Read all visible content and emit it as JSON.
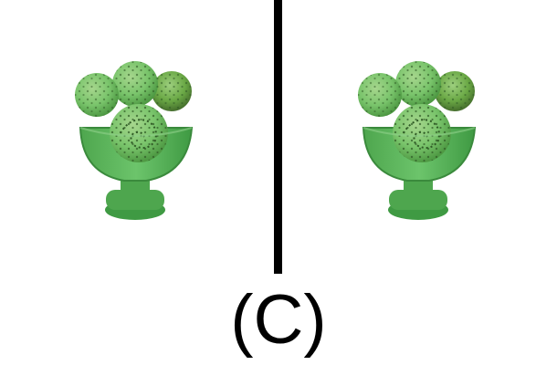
{
  "caption": "(C)",
  "panels": [
    {
      "subject": "ice-cream-sundae-icon"
    },
    {
      "subject": "ice-cream-sundae-icon"
    }
  ],
  "colors": {
    "background": "#ffffff",
    "divider": "#000000",
    "cup": "#58b658",
    "cup_dark": "#3f9a43",
    "scoop": "#79c46b",
    "scoop_dark": "#5a8f3d",
    "sprinkle": "#2f5a25",
    "caption": "#000000"
  }
}
